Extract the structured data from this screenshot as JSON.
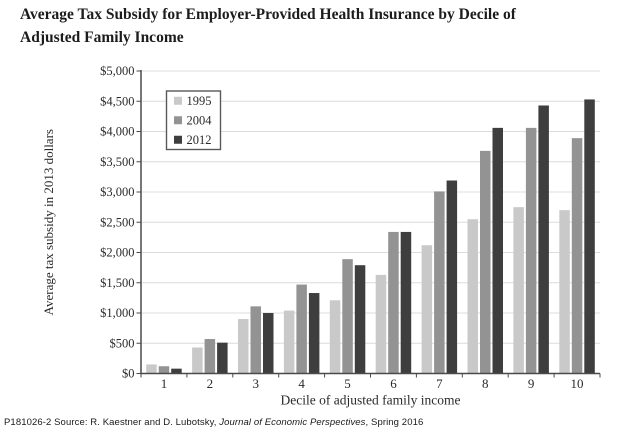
{
  "title": {
    "line1": "Average Tax Subsidy for Employer-Provided Health Insurance by Decile of",
    "line2": "Adjusted Family Income"
  },
  "footer": {
    "prefix": "P181026-2 Source: R. Kaestner and D. Lubotsky, ",
    "journal": "Journal of Economic Perspectives",
    "suffix": ", Spring 2016"
  },
  "chart_data": {
    "type": "bar",
    "title": "Average Tax Subsidy for Employer-Provided Health Insurance by Decile of Adjusted Family Income",
    "categories": [
      "1",
      "2",
      "3",
      "4",
      "5",
      "6",
      "7",
      "8",
      "9",
      "10"
    ],
    "series": [
      {
        "name": "1995",
        "color": "#c9c9c9",
        "values": [
          150,
          430,
          900,
          1040,
          1210,
          1630,
          2120,
          2550,
          2750,
          2700
        ]
      },
      {
        "name": "2004",
        "color": "#939393",
        "values": [
          120,
          570,
          1110,
          1470,
          1890,
          2340,
          3010,
          3680,
          4060,
          3890
        ]
      },
      {
        "name": "2012",
        "color": "#3e3e3e",
        "values": [
          80,
          510,
          1000,
          1330,
          1790,
          2340,
          3190,
          4060,
          4430,
          4530
        ]
      }
    ],
    "xlabel": "Decile of adjusted family income",
    "ylabel": "Average tax subsidy in 2013 dollars",
    "ylim": [
      0,
      5000
    ],
    "ytick_step": 500,
    "ytick_labels": [
      "$0",
      "$500",
      "$1,000",
      "$1,500",
      "$2,000",
      "$2,500",
      "$3,000",
      "$3,500",
      "$4,000",
      "$4,500",
      "$5,000"
    ],
    "legend": {
      "position": "top-left",
      "entries": [
        "1995",
        "2004",
        "2012"
      ]
    },
    "grid": true,
    "colors": {
      "gridline": "#dcdcdc",
      "axis": "#4a4a4a",
      "text": "#2b2b2b",
      "legend_border": "#58595b"
    }
  }
}
